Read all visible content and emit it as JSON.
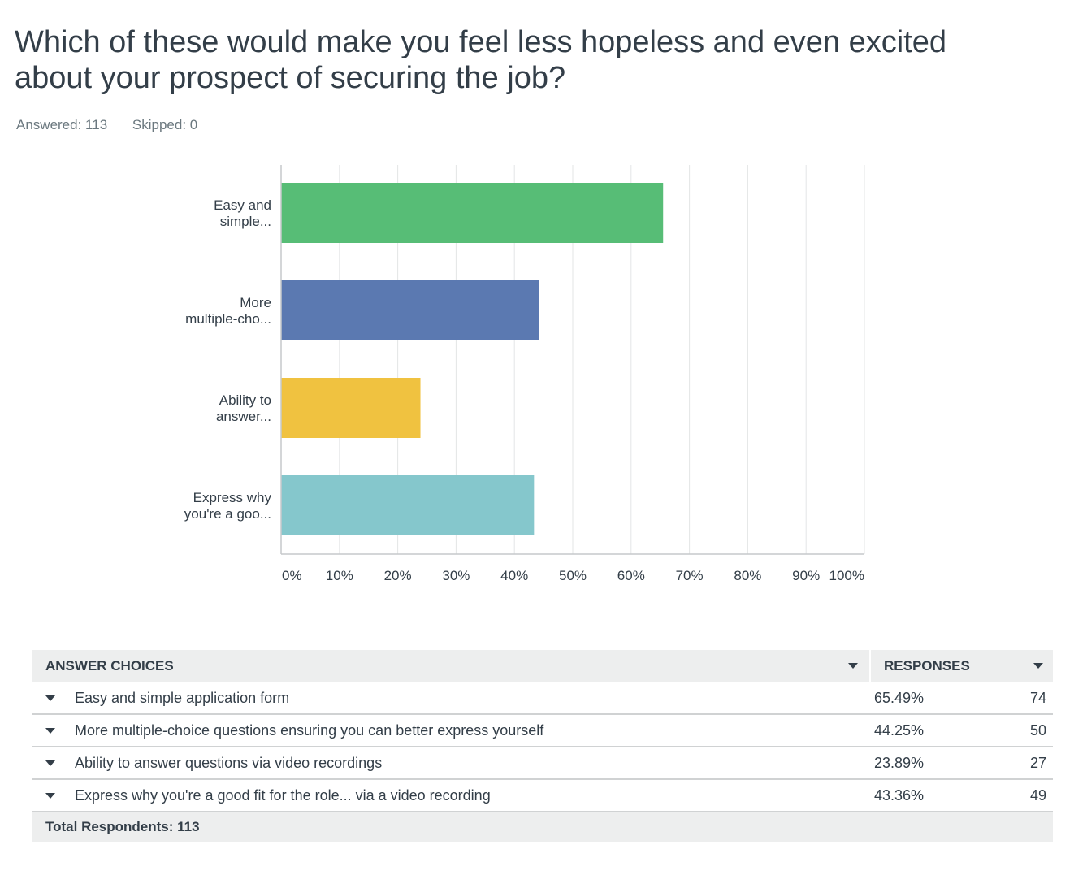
{
  "question": {
    "title_line1": "Which of these would make you feel less hopeless and even excited",
    "title_line2": "about your prospect of securing the job?",
    "answered": "Answered: 113",
    "skipped": "Skipped: 0"
  },
  "chart_data": {
    "type": "bar",
    "orientation": "horizontal",
    "categories": [
      [
        "Easy and",
        "simple..."
      ],
      [
        "More",
        "multiple-cho..."
      ],
      [
        "Ability to",
        "answer..."
      ],
      [
        "Express why",
        "you're a goo..."
      ]
    ],
    "values": [
      65.49,
      44.25,
      23.89,
      43.36
    ],
    "colors": [
      "#57bd76",
      "#5b79b1",
      "#f0c240",
      "#85c7cc"
    ],
    "xticks": [
      "0%",
      "10%",
      "20%",
      "30%",
      "40%",
      "50%",
      "60%",
      "70%",
      "80%",
      "90%",
      "100%"
    ],
    "xlim": [
      0,
      100
    ],
    "grid": true
  },
  "table": {
    "header_choices": "ANSWER CHOICES",
    "header_responses": "RESPONSES",
    "rows": [
      {
        "label": "Easy and simple application form",
        "pct": "65.49%",
        "count": "74"
      },
      {
        "label": "More multiple-choice questions ensuring you can better express yourself",
        "pct": "44.25%",
        "count": "50"
      },
      {
        "label": "Ability to answer questions via video recordings",
        "pct": "23.89%",
        "count": "27"
      },
      {
        "label": "Express why you're a good fit for the role... via a video recording",
        "pct": "43.36%",
        "count": "49"
      }
    ],
    "total": "Total Respondents: 113"
  }
}
